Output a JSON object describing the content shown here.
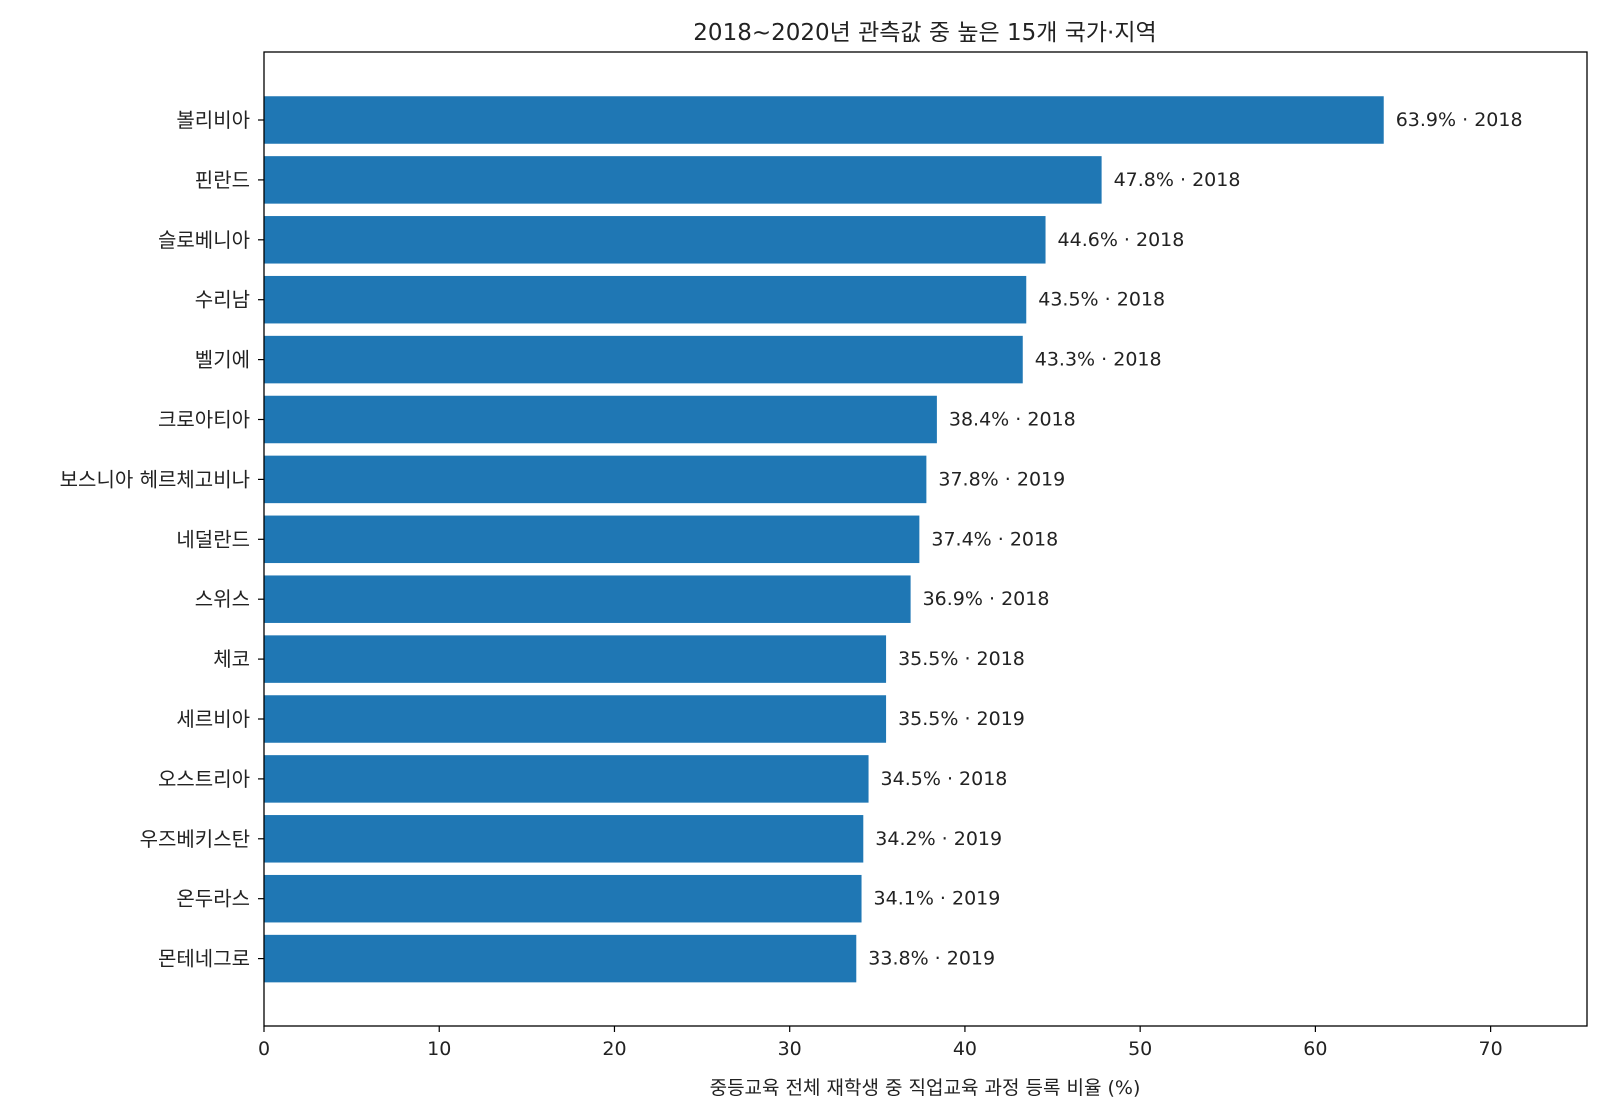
{
  "chart_data": {
    "type": "bar",
    "orientation": "horizontal",
    "title": "2018~2020년 관측값 중 높은 15개 국가·지역",
    "xlabel": "중등교육 전체 재학생 중 직업교육 과정 등록 비율 (%)",
    "ylabel": "",
    "xlim": [
      0,
      75.5
    ],
    "xticks": [
      0,
      10,
      20,
      30,
      40,
      50,
      60,
      70
    ],
    "grid": false,
    "legend": "none",
    "bar_color": "#1f77b4",
    "categories": [
      "볼리비아",
      "핀란드",
      "슬로베니아",
      "수리남",
      "벨기에",
      "크로아티아",
      "보스니아 헤르체고비나",
      "네덜란드",
      "스위스",
      "체코",
      "세르비아",
      "오스트리아",
      "우즈베키스탄",
      "온두라스",
      "몬테네그로"
    ],
    "values": [
      63.9,
      47.8,
      44.6,
      43.5,
      43.3,
      38.4,
      37.8,
      37.4,
      36.9,
      35.5,
      35.5,
      34.5,
      34.2,
      34.1,
      33.8
    ],
    "years": [
      "2018",
      "2018",
      "2018",
      "2018",
      "2018",
      "2018",
      "2019",
      "2018",
      "2018",
      "2018",
      "2019",
      "2018",
      "2019",
      "2019",
      "2019"
    ],
    "data_labels": [
      "63.9% · 2018",
      "47.8% · 2018",
      "44.6% · 2018",
      "43.5% · 2018",
      "43.3% · 2018",
      "38.4% · 2018",
      "37.8% · 2019",
      "37.4% · 2018",
      "36.9% · 2018",
      "35.5% · 2018",
      "35.5% · 2019",
      "34.5% · 2018",
      "34.2% · 2019",
      "34.1% · 2019",
      "33.8% · 2019"
    ]
  }
}
